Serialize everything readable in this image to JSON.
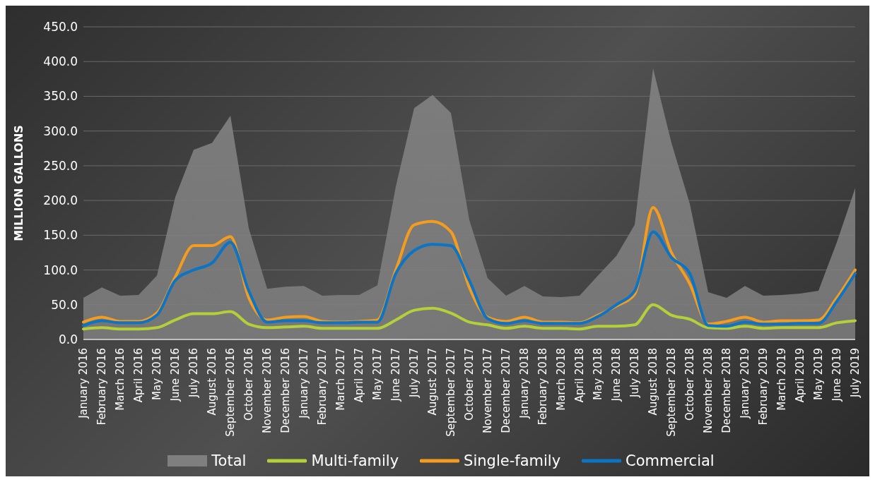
{
  "chart_data": {
    "type": "line",
    "ylabel": "MILLION GALLONS",
    "categories": [
      "January 2016",
      "February 2016",
      "March 2016",
      "April 2016",
      "May 2016",
      "June 2016",
      "July 2016",
      "August 2016",
      "September 2016",
      "October 2016",
      "November 2016",
      "December 2016",
      "January 2017",
      "February 2017",
      "March 2017",
      "April 2017",
      "May 2017",
      "June 2017",
      "July 2017",
      "August 2017",
      "September 2017",
      "October 2017",
      "November 2017",
      "December 2017",
      "January 2018",
      "February 2018",
      "March 2018",
      "April 2018",
      "May 2018",
      "June 2018",
      "July 2018",
      "August 2018",
      "September 2018",
      "October 2018",
      "November 2018",
      "December 2018",
      "January 2019",
      "February 2019",
      "March 2019",
      "April 2019",
      "May 2019",
      "June 2019",
      "July 2019"
    ],
    "series": [
      {
        "name": "Total",
        "type": "area",
        "color": "#7f7f7f",
        "values": [
          60,
          75,
          63,
          64,
          92,
          205,
          273,
          283,
          322,
          160,
          73,
          76,
          77,
          63,
          64,
          64,
          78,
          220,
          333,
          352,
          326,
          172,
          88,
          63,
          77,
          62,
          61,
          63,
          92,
          120,
          165,
          390,
          283,
          195,
          68,
          60,
          77,
          63,
          64,
          66,
          70,
          140,
          218
        ]
      },
      {
        "name": "Multi-family",
        "color": "#b3cf3a",
        "values": [
          15,
          17,
          15,
          15,
          17,
          28,
          37,
          37,
          40,
          22,
          17,
          18,
          19,
          16,
          16,
          16,
          16,
          28,
          42,
          45,
          38,
          25,
          21,
          16,
          19,
          16,
          16,
          15,
          19,
          19,
          21,
          50,
          35,
          29,
          17,
          16,
          19,
          16,
          17,
          17,
          17,
          24,
          27
        ]
      },
      {
        "name": "Single-family",
        "color": "#f49c1f",
        "values": [
          25,
          32,
          26,
          26,
          38,
          90,
          135,
          135,
          148,
          60,
          28,
          32,
          33,
          26,
          25,
          26,
          28,
          100,
          165,
          170,
          155,
          75,
          32,
          26,
          32,
          25,
          25,
          24,
          35,
          48,
          65,
          190,
          125,
          80,
          22,
          26,
          32,
          25,
          27,
          27,
          28,
          60,
          100
        ]
      },
      {
        "name": "Commercial",
        "color": "#0b74c4",
        "values": [
          20,
          27,
          24,
          24,
          35,
          85,
          100,
          110,
          140,
          70,
          25,
          27,
          27,
          24,
          24,
          25,
          25,
          95,
          128,
          137,
          135,
          85,
          30,
          23,
          27,
          23,
          23,
          23,
          33,
          50,
          70,
          155,
          118,
          95,
          20,
          19,
          25,
          22,
          22,
          23,
          23,
          55,
          95
        ]
      }
    ],
    "ylim": [
      0,
      450
    ],
    "yticks": [
      {
        "value": 0,
        "label": "0.0"
      },
      {
        "value": 50,
        "label": "50.0"
      },
      {
        "value": 100,
        "label": "100.0"
      },
      {
        "value": 150,
        "label": "150.0"
      },
      {
        "value": 200,
        "label": "200.0"
      },
      {
        "value": 250,
        "label": "250.0"
      },
      {
        "value": 300,
        "label": "300.0"
      },
      {
        "value": 350,
        "label": "350.0"
      },
      {
        "value": 400,
        "label": "400.0"
      },
      {
        "value": 450,
        "label": "450.0"
      }
    ],
    "grid": "y",
    "legend": "bottom",
    "marker": "none",
    "line_style": "solid"
  }
}
